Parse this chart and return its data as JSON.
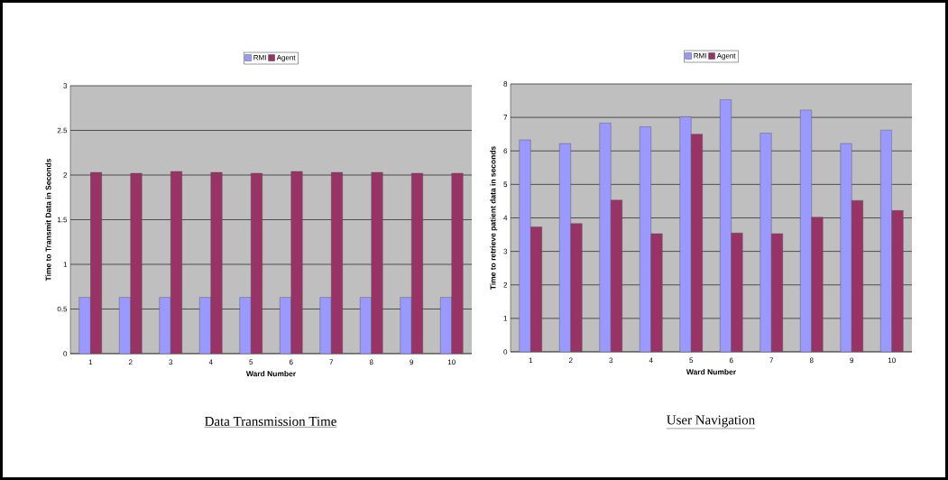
{
  "chart_data": [
    {
      "type": "bar",
      "title": "Data Transmission Time",
      "xlabel": "Ward Number",
      "ylabel": "Time to Transmit Data in Seconds",
      "categories": [
        "1",
        "2",
        "3",
        "4",
        "5",
        "6",
        "7",
        "8",
        "9",
        "10"
      ],
      "series": [
        {
          "name": "RMI",
          "color": "#9999ff",
          "values": [
            0.63,
            0.63,
            0.63,
            0.63,
            0.63,
            0.63,
            0.63,
            0.63,
            0.63,
            0.63
          ]
        },
        {
          "name": "Agent",
          "color": "#993366",
          "values": [
            2.03,
            2.02,
            2.04,
            2.03,
            2.02,
            2.04,
            2.03,
            2.03,
            2.02,
            2.02
          ]
        }
      ],
      "ylim": [
        0,
        3
      ],
      "yticks": [
        0,
        0.5,
        1,
        1.5,
        2,
        2.5,
        3
      ],
      "grid": "y",
      "legend": "top"
    },
    {
      "type": "bar",
      "title": "User Navigation",
      "xlabel": "Ward Number",
      "ylabel": "Time to retrieve patient data in seconds",
      "categories": [
        "1",
        "2",
        "3",
        "4",
        "5",
        "6",
        "7",
        "8",
        "9",
        "10"
      ],
      "series": [
        {
          "name": "RMI",
          "color": "#9999ff",
          "values": [
            6.33,
            6.22,
            6.83,
            6.72,
            7.02,
            7.53,
            6.53,
            7.22,
            6.22,
            6.62
          ]
        },
        {
          "name": "Agent",
          "color": "#993366",
          "values": [
            3.73,
            3.83,
            4.53,
            3.53,
            6.5,
            3.55,
            3.53,
            4.02,
            4.52,
            4.22
          ]
        }
      ],
      "ylim": [
        0,
        8
      ],
      "yticks": [
        0,
        1,
        2,
        3,
        4,
        5,
        6,
        7,
        8
      ],
      "grid": "y",
      "legend": "top"
    }
  ]
}
